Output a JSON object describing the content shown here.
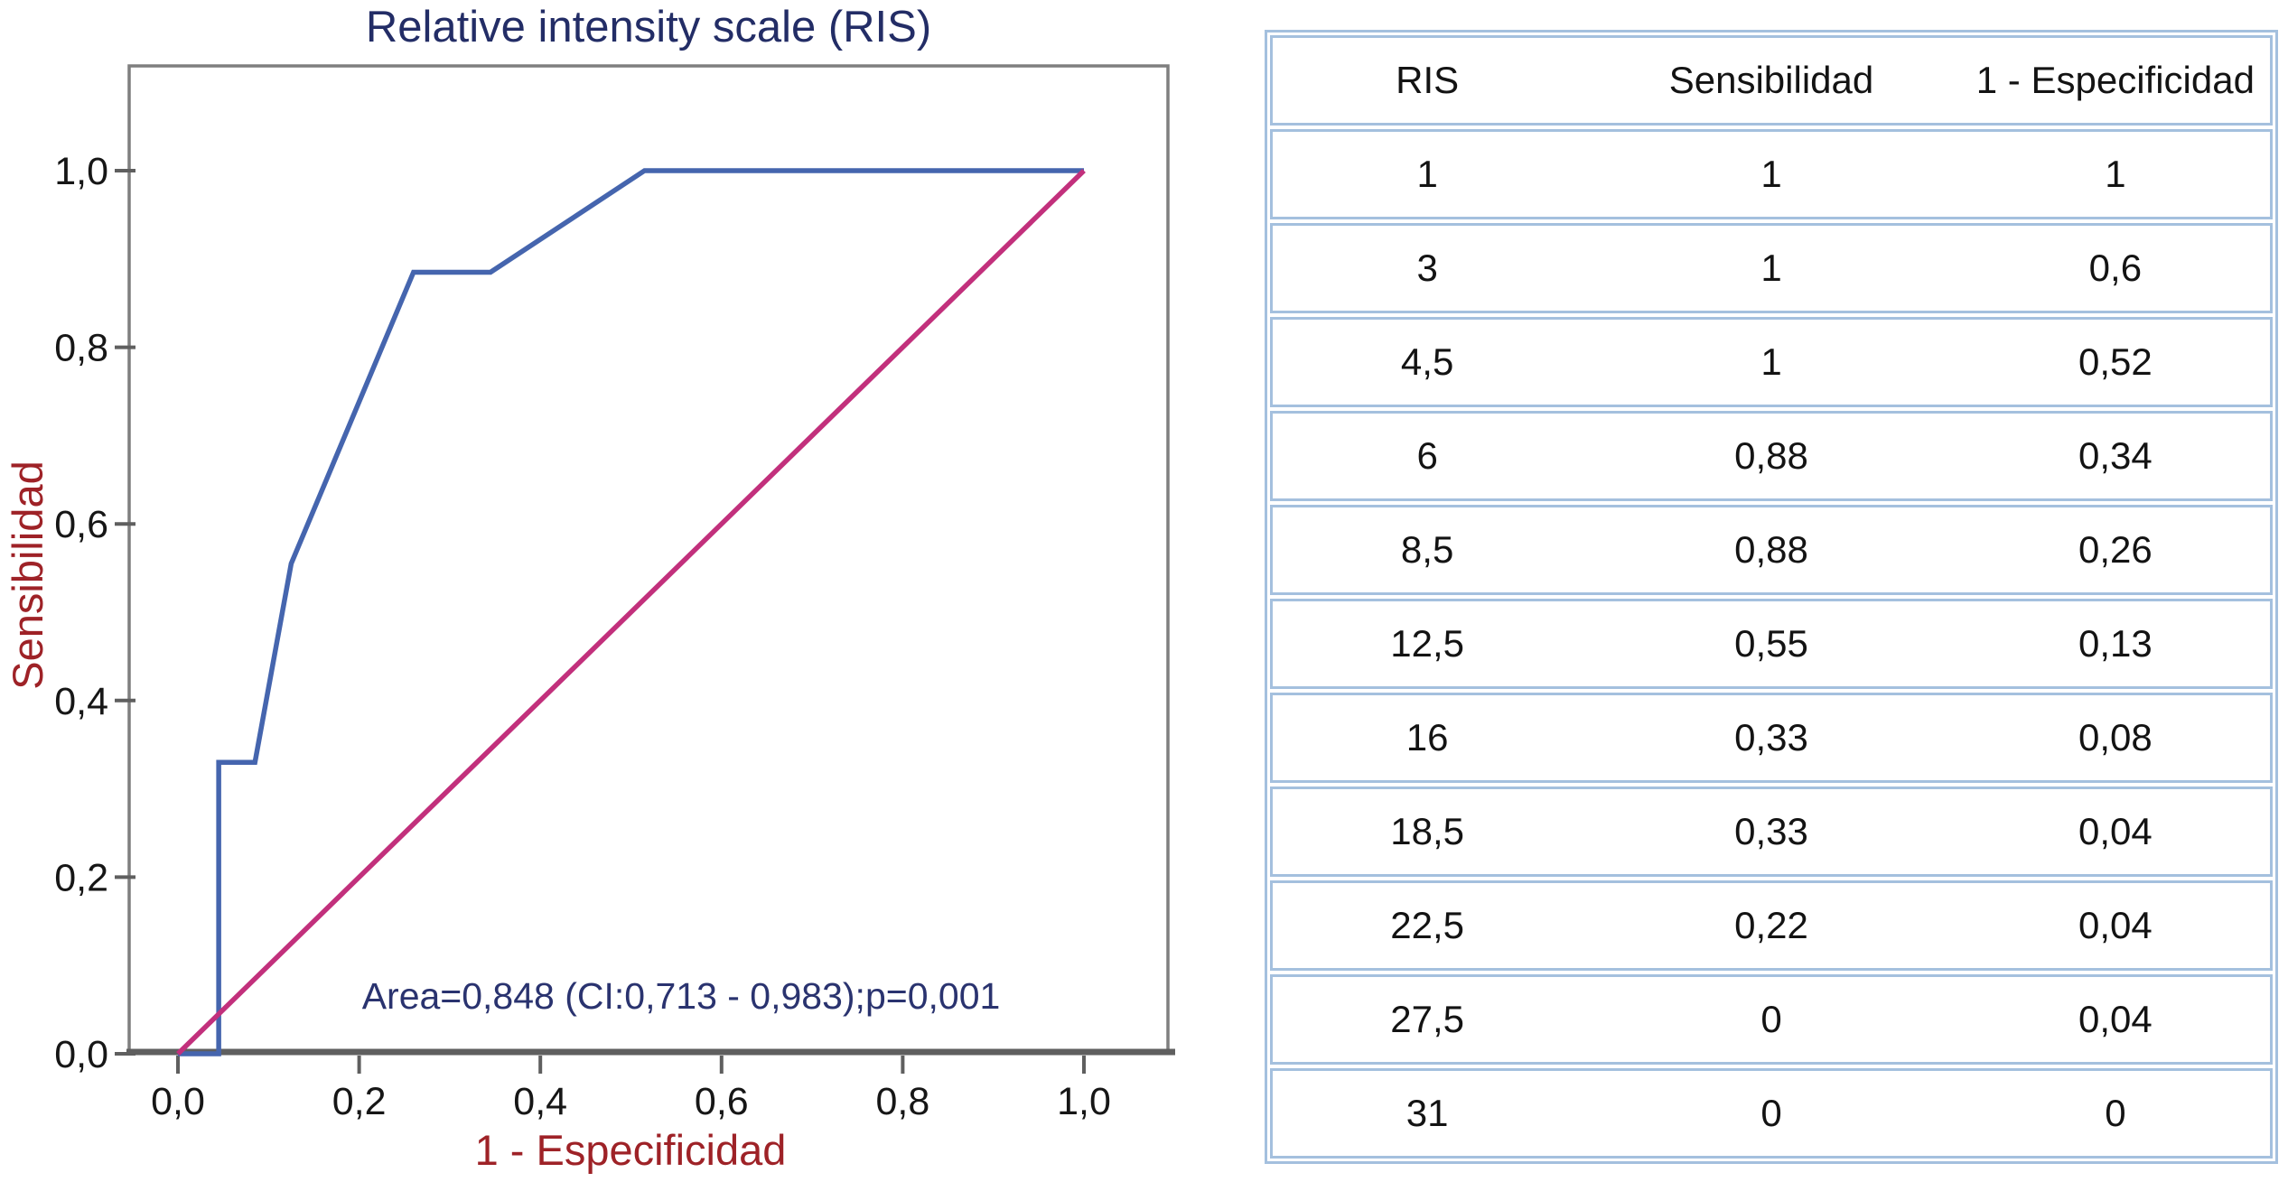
{
  "chart_data": {
    "type": "line",
    "title": "Relative intensity scale (RIS)",
    "xlabel": "1 - Especificidad",
    "ylabel": "Sensibilidad",
    "annotation": "Area=0,848 (CI:0,713 - 0,983);p=0,001",
    "xlim": [
      0,
      1
    ],
    "ylim": [
      0,
      1
    ],
    "grid": false,
    "legend": "none",
    "x_axis": {
      "values": [
        0,
        0.2,
        0.4,
        0.6,
        0.8,
        1.0
      ],
      "labels": [
        "0,0",
        "0,2",
        "0,4",
        "0,6",
        "0,8",
        "1,0"
      ]
    },
    "y_axis": {
      "values": [
        0,
        0.2,
        0.4,
        0.6,
        0.8,
        1.0
      ],
      "labels": [
        "0,0",
        "0,2",
        "0,4",
        "0,6",
        "0,8",
        "1,0"
      ]
    },
    "series": [
      {
        "id": "roc-curve-line",
        "name": "ROC curve (RIS)",
        "color": "#4565ae",
        "x": [
          0,
          0.045,
          0.045,
          0.085,
          0.125,
          0.17,
          0.26,
          0.345,
          0.515,
          1.0
        ],
        "y": [
          0,
          0,
          0.33,
          0.33,
          0.555,
          0.665,
          0.885,
          0.885,
          1.0,
          1.0
        ]
      },
      {
        "id": "reference-diagonal-line",
        "name": "Reference diagonal",
        "color": "#c2307c",
        "x": [
          0,
          1.0
        ],
        "y": [
          0,
          1.0
        ]
      }
    ]
  },
  "table": {
    "headers": [
      "RIS",
      "Sensibilidad",
      "1 - Especificidad"
    ],
    "rows": [
      [
        "1",
        "1",
        "1"
      ],
      [
        "3",
        "1",
        "0,6"
      ],
      [
        "4,5",
        "1",
        "0,52"
      ],
      [
        "6",
        "0,88",
        "0,34"
      ],
      [
        "8,5",
        "0,88",
        "0,26"
      ],
      [
        "12,5",
        "0,55",
        "0,13"
      ],
      [
        "16",
        "0,33",
        "0,08"
      ],
      [
        "18,5",
        "0,33",
        "0,04"
      ],
      [
        "22,5",
        "0,22",
        "0,04"
      ],
      [
        "27,5",
        "0",
        "0,04"
      ],
      [
        "31",
        "0",
        "0"
      ]
    ]
  },
  "colors": {
    "title_navy": "#232d66",
    "annotation_navy": "#2a336f",
    "axis_title_red": "#9e2227",
    "tick_black": "#161616",
    "roc_blue": "#4565ae",
    "diagonal_pink": "#c2307c",
    "frame_gray": "#7f7f7f",
    "axis_dark_gray": "#5f5f5f",
    "table_border_blue": "#a4c0de"
  }
}
